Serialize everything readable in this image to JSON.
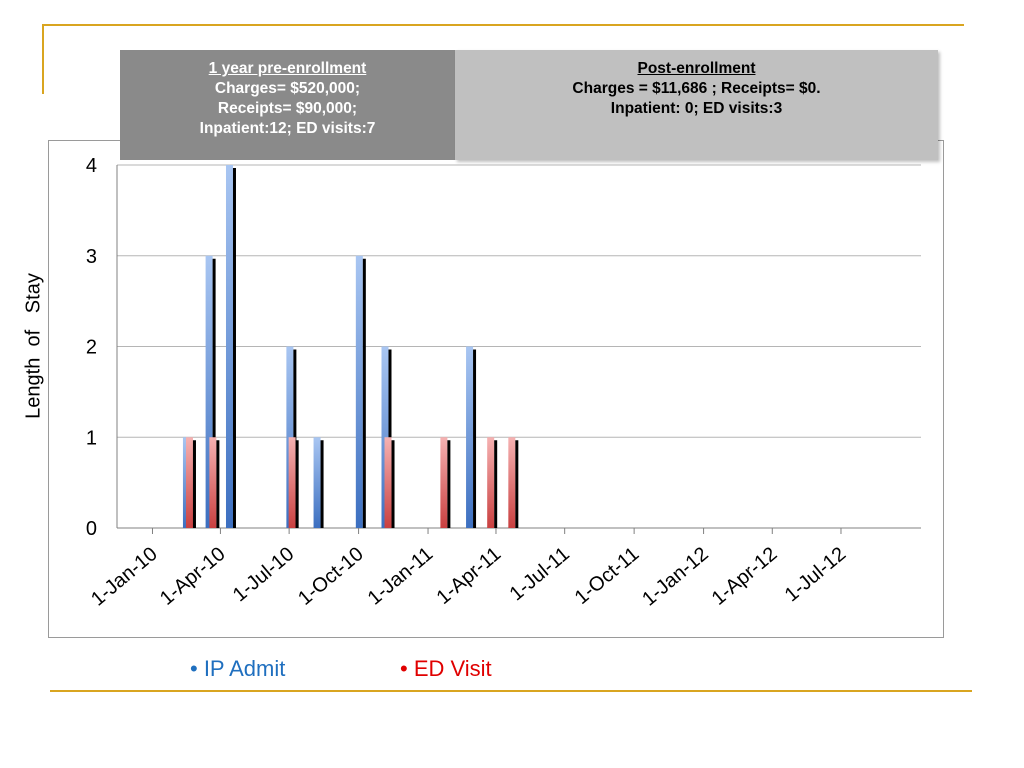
{
  "colors": {
    "accent_line": "#D9A520",
    "ip_admit": "#4A7FD0",
    "ed_visit": "#E06666",
    "legend_ip": "#1F6FBF",
    "legend_ed": "#E00000",
    "grid": "#b5b5b5"
  },
  "panels": {
    "pre": {
      "title": "1 year pre-enrollment",
      "line1": "Charges= $520,000;",
      "line2": "Receipts= $90,000;",
      "line3": "Inpatient:12; ED visits:7"
    },
    "post": {
      "title": "Post-enrollment",
      "line1": "Charges = $11,686 ; Receipts= $0.",
      "line2": "Inpatient: 0; ED visits:3"
    }
  },
  "legend": {
    "ip_label": "• IP Admit",
    "ed_label": "• ED Visit"
  },
  "chart_data": {
    "type": "bar",
    "ylabel": "Length  of   Stay",
    "ylim": [
      0,
      4
    ],
    "yticks": [
      "0",
      "1",
      "2",
      "3",
      "4"
    ],
    "xlim": [
      "2009-11-15",
      "2012-10-15"
    ],
    "xticks": [
      "1-Jan-10",
      "1-Apr-10",
      "1-Jul-10",
      "1-Oct-10",
      "1-Jan-11",
      "1-Apr-11",
      "1-Jul-11",
      "1-Oct-11",
      "1-Jan-12",
      "1-Apr-12",
      "1-Jul-12"
    ],
    "xtick_dates": [
      "2010-01-01",
      "2010-04-01",
      "2010-07-01",
      "2010-10-01",
      "2011-01-01",
      "2011-04-01",
      "2011-07-01",
      "2011-10-01",
      "2012-01-01",
      "2012-04-01",
      "2012-07-01"
    ],
    "grid": true,
    "series": [
      {
        "name": "IP Admit",
        "points": [
          {
            "date": "2010-02-15",
            "value": 1
          },
          {
            "date": "2010-03-17",
            "value": 3
          },
          {
            "date": "2010-04-13",
            "value": 4
          },
          {
            "date": "2010-07-02",
            "value": 2
          },
          {
            "date": "2010-08-07",
            "value": 1
          },
          {
            "date": "2010-10-02",
            "value": 3
          },
          {
            "date": "2010-11-05",
            "value": 2
          },
          {
            "date": "2011-02-25",
            "value": 2
          }
        ]
      },
      {
        "name": "ED Visit",
        "points": [
          {
            "date": "2010-02-19",
            "value": 1
          },
          {
            "date": "2010-03-22",
            "value": 1
          },
          {
            "date": "2010-07-05",
            "value": 1
          },
          {
            "date": "2010-11-09",
            "value": 1
          },
          {
            "date": "2011-01-22",
            "value": 1
          },
          {
            "date": "2011-03-25",
            "value": 1
          },
          {
            "date": "2011-04-22",
            "value": 1
          }
        ]
      }
    ]
  }
}
